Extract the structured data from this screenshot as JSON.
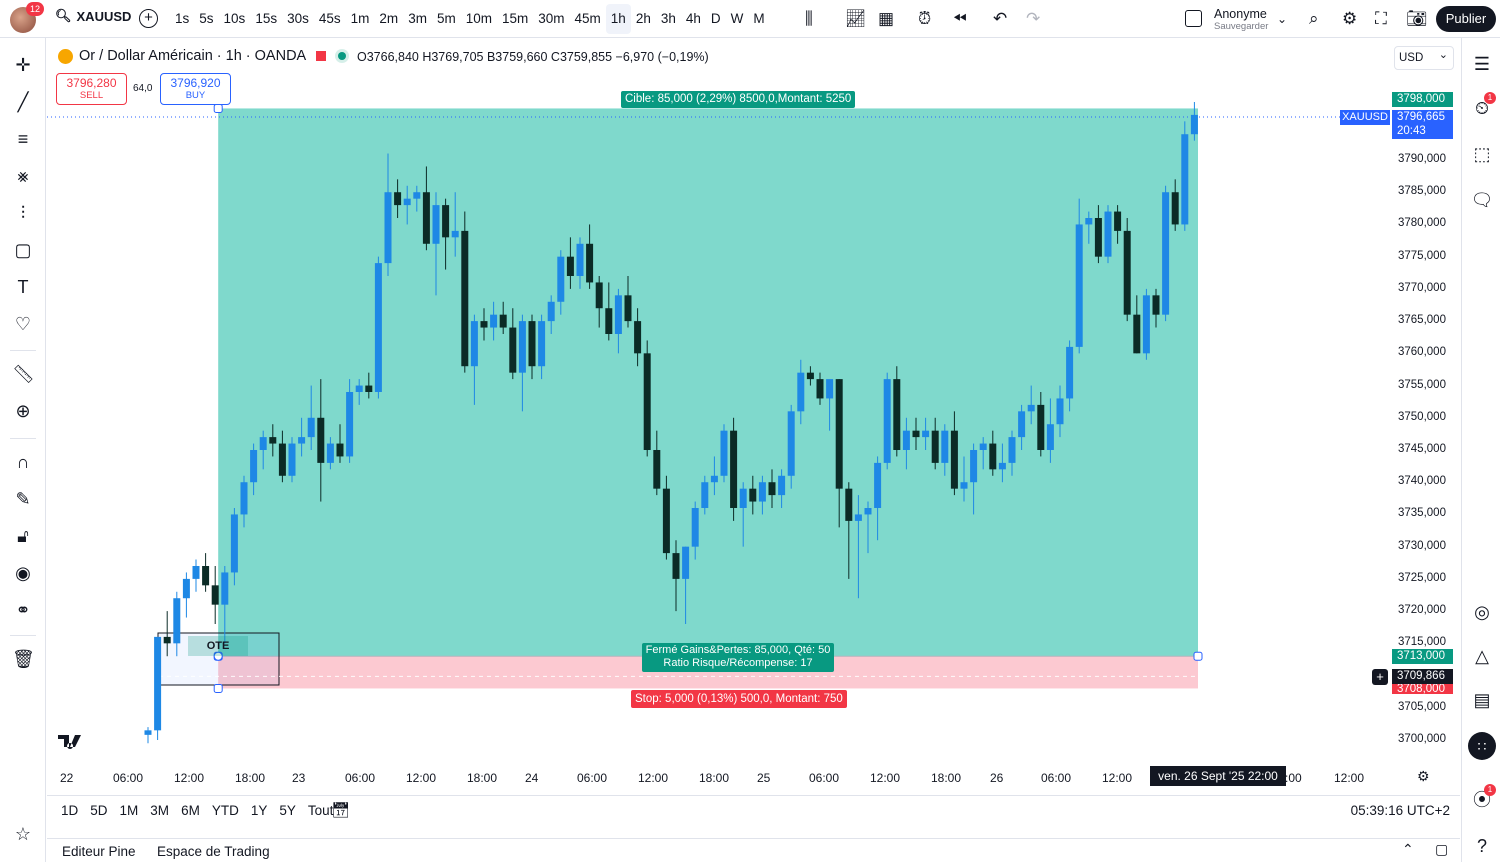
{
  "topbar": {
    "notifications": "12",
    "symbol": "XAUUSD",
    "intervals": [
      "1s",
      "5s",
      "10s",
      "15s",
      "30s",
      "45s",
      "1m",
      "2m",
      "3m",
      "5m",
      "10m",
      "15m",
      "30m",
      "45m",
      "1h",
      "2h",
      "3h",
      "4h",
      "D",
      "W",
      "M"
    ],
    "active_interval": "1h",
    "user_name": "Anonyme",
    "user_status": "Sauvegarder",
    "publish_label": "Publier"
  },
  "legend": {
    "title": "Or / Dollar Américain · 1h · OANDA",
    "ohlc": "O3766,840 H3769,705 B3759,660 C3759,855 −6,970 (−0,19%)"
  },
  "trade": {
    "sell_price": "3796,280",
    "sell_label": "SELL",
    "spread": "64,0",
    "buy_price": "3796,920",
    "buy_label": "BUY",
    "target_text": "Cible: 85,000 (2,29%) 8500,0,Montant: 5250",
    "closed_line1": "Fermé Gains&Pertes: 85,000, Qté: 50",
    "closed_line2": "Ratio Risque/Récompense: 17",
    "stop_text": "Stop: 5,000 (0,13%) 500,0, Montant: 750",
    "ote_label": "OTE"
  },
  "axis": {
    "currency": "USD",
    "price_labels": [
      "3790,000",
      "3785,000",
      "3780,000",
      "3775,000",
      "3770,000",
      "3765,000",
      "3760,000",
      "3755,000",
      "3750,000",
      "3745,000",
      "3740,000",
      "3735,000",
      "3730,000",
      "3725,000",
      "3720,000",
      "3715,000",
      "3705,000",
      "3700,000"
    ],
    "tag_target": "3798,000",
    "tag_symbol": "XAUUSD",
    "tag_last": "3796,665",
    "tag_countdown": "20:43",
    "tag_entry": "3713,000",
    "tag_cross": "3709,866",
    "tag_stop": "3708,000",
    "time_labels": [
      "22",
      "06:00",
      "12:00",
      "18:00",
      "23",
      "06:00",
      "12:00",
      "18:00",
      "24",
      "06:00",
      "12:00",
      "18:00",
      "25",
      "06:00",
      "12:00",
      "18:00",
      "26",
      "06:00",
      "12:00",
      ":00",
      "12:00"
    ],
    "crosshair_time": "ven. 26 Sept '25   22:00"
  },
  "bottom": {
    "ranges": [
      "1D",
      "5D",
      "1M",
      "3M",
      "6M",
      "YTD",
      "1Y",
      "5Y",
      "Tout"
    ],
    "clock": "05:39:16 UTC+2",
    "pine_editor": "Editeur Pine",
    "trading_panel": "Espace de Trading"
  },
  "colors": {
    "up": "#1e88e5",
    "down": "#0b2b26",
    "profit_zone": "#7fd9cc",
    "loss_zone": "#fcc9d1",
    "accent": "#2962ff"
  },
  "chart_data": {
    "type": "candlestick",
    "symbol": "XAUUSD",
    "interval": "1h",
    "ylim": [
      3697,
      3800
    ],
    "candles": [
      {
        "o": 3700.8,
        "h": 3702,
        "l": 3699.5,
        "c": 3701.5
      },
      {
        "o": 3701.5,
        "h": 3716,
        "l": 3700,
        "c": 3716
      },
      {
        "o": 3716,
        "h": 3720,
        "l": 3713,
        "c": 3715
      },
      {
        "o": 3715,
        "h": 3723,
        "l": 3713,
        "c": 3722
      },
      {
        "o": 3722,
        "h": 3726,
        "l": 3719,
        "c": 3725
      },
      {
        "o": 3725,
        "h": 3728,
        "l": 3723,
        "c": 3727
      },
      {
        "o": 3727,
        "h": 3729,
        "l": 3723,
        "c": 3724
      },
      {
        "o": 3724,
        "h": 3727,
        "l": 3718,
        "c": 3721
      },
      {
        "o": 3721,
        "h": 3727,
        "l": 3715,
        "c": 3726
      },
      {
        "o": 3726,
        "h": 3736,
        "l": 3724,
        "c": 3735
      },
      {
        "o": 3735,
        "h": 3741,
        "l": 3733,
        "c": 3740
      },
      {
        "o": 3740,
        "h": 3746,
        "l": 3738,
        "c": 3745
      },
      {
        "o": 3745,
        "h": 3748,
        "l": 3742,
        "c": 3747
      },
      {
        "o": 3747,
        "h": 3749,
        "l": 3744,
        "c": 3746
      },
      {
        "o": 3746,
        "h": 3748,
        "l": 3740,
        "c": 3741
      },
      {
        "o": 3741,
        "h": 3747,
        "l": 3740,
        "c": 3746
      },
      {
        "o": 3746,
        "h": 3750,
        "l": 3744,
        "c": 3747
      },
      {
        "o": 3747,
        "h": 3755,
        "l": 3745,
        "c": 3750
      },
      {
        "o": 3750,
        "h": 3756,
        "l": 3737,
        "c": 3743
      },
      {
        "o": 3743,
        "h": 3747,
        "l": 3742,
        "c": 3746
      },
      {
        "o": 3746,
        "h": 3749,
        "l": 3743,
        "c": 3744
      },
      {
        "o": 3744,
        "h": 3756,
        "l": 3743,
        "c": 3754
      },
      {
        "o": 3754,
        "h": 3756,
        "l": 3752,
        "c": 3755
      },
      {
        "o": 3755,
        "h": 3757,
        "l": 3753,
        "c": 3754
      },
      {
        "o": 3754,
        "h": 3775,
        "l": 3753,
        "c": 3774
      },
      {
        "o": 3774,
        "h": 3791,
        "l": 3772,
        "c": 3785
      },
      {
        "o": 3785,
        "h": 3787,
        "l": 3781,
        "c": 3783
      },
      {
        "o": 3783,
        "h": 3786,
        "l": 3780,
        "c": 3784
      },
      {
        "o": 3784,
        "h": 3786,
        "l": 3782,
        "c": 3785
      },
      {
        "o": 3785,
        "h": 3789,
        "l": 3776,
        "c": 3777
      },
      {
        "o": 3777,
        "h": 3785,
        "l": 3769,
        "c": 3783
      },
      {
        "o": 3783,
        "h": 3784,
        "l": 3773,
        "c": 3778
      },
      {
        "o": 3778,
        "h": 3785,
        "l": 3775,
        "c": 3779
      },
      {
        "o": 3779,
        "h": 3782,
        "l": 3757,
        "c": 3758
      },
      {
        "o": 3758,
        "h": 3766,
        "l": 3752,
        "c": 3765
      },
      {
        "o": 3765,
        "h": 3767,
        "l": 3762,
        "c": 3764
      },
      {
        "o": 3764,
        "h": 3768,
        "l": 3762,
        "c": 3766
      },
      {
        "o": 3766,
        "h": 3768,
        "l": 3763,
        "c": 3764
      },
      {
        "o": 3764,
        "h": 3767,
        "l": 3756,
        "c": 3757
      },
      {
        "o": 3757,
        "h": 3766,
        "l": 3751,
        "c": 3765
      },
      {
        "o": 3765,
        "h": 3766,
        "l": 3756,
        "c": 3758
      },
      {
        "o": 3758,
        "h": 3766,
        "l": 3756,
        "c": 3765
      },
      {
        "o": 3765,
        "h": 3769,
        "l": 3763,
        "c": 3768
      },
      {
        "o": 3768,
        "h": 3776,
        "l": 3766,
        "c": 3775
      },
      {
        "o": 3775,
        "h": 3778,
        "l": 3770,
        "c": 3772
      },
      {
        "o": 3772,
        "h": 3778,
        "l": 3770,
        "c": 3777
      },
      {
        "o": 3777,
        "h": 3780,
        "l": 3770,
        "c": 3771
      },
      {
        "o": 3771,
        "h": 3772,
        "l": 3764,
        "c": 3767
      },
      {
        "o": 3767,
        "h": 3771,
        "l": 3762,
        "c": 3763
      },
      {
        "o": 3763,
        "h": 3770,
        "l": 3760,
        "c": 3769
      },
      {
        "o": 3769,
        "h": 3772,
        "l": 3764,
        "c": 3765
      },
      {
        "o": 3765,
        "h": 3767,
        "l": 3758,
        "c": 3760
      },
      {
        "o": 3760,
        "h": 3762,
        "l": 3744,
        "c": 3745
      },
      {
        "o": 3745,
        "h": 3748,
        "l": 3738,
        "c": 3739
      },
      {
        "o": 3739,
        "h": 3741,
        "l": 3728,
        "c": 3729
      },
      {
        "o": 3729,
        "h": 3731,
        "l": 3720,
        "c": 3725
      },
      {
        "o": 3725,
        "h": 3730,
        "l": 3718,
        "c": 3730
      },
      {
        "o": 3730,
        "h": 3737,
        "l": 3728,
        "c": 3736
      },
      {
        "o": 3736,
        "h": 3741,
        "l": 3735,
        "c": 3740
      },
      {
        "o": 3740,
        "h": 3744,
        "l": 3738,
        "c": 3741
      },
      {
        "o": 3741,
        "h": 3749,
        "l": 3740,
        "c": 3748
      },
      {
        "o": 3748,
        "h": 3750,
        "l": 3734,
        "c": 3736
      },
      {
        "o": 3736,
        "h": 3740,
        "l": 3730,
        "c": 3739
      },
      {
        "o": 3739,
        "h": 3741,
        "l": 3735,
        "c": 3737
      },
      {
        "o": 3737,
        "h": 3741,
        "l": 3735,
        "c": 3740
      },
      {
        "o": 3740,
        "h": 3742,
        "l": 3736,
        "c": 3738
      },
      {
        "o": 3738,
        "h": 3742,
        "l": 3736,
        "c": 3741
      },
      {
        "o": 3741,
        "h": 3752,
        "l": 3739,
        "c": 3751
      },
      {
        "o": 3751,
        "h": 3759,
        "l": 3749,
        "c": 3757
      },
      {
        "o": 3757,
        "h": 3758,
        "l": 3755,
        "c": 3756
      },
      {
        "o": 3756,
        "h": 3757,
        "l": 3752,
        "c": 3753
      },
      {
        "o": 3753,
        "h": 3755,
        "l": 3748,
        "c": 3756
      },
      {
        "o": 3756,
        "h": 3756,
        "l": 3733,
        "c": 3739
      },
      {
        "o": 3739,
        "h": 3740,
        "l": 3725,
        "c": 3734
      },
      {
        "o": 3734,
        "h": 3738,
        "l": 3722,
        "c": 3735
      },
      {
        "o": 3735,
        "h": 3737,
        "l": 3729,
        "c": 3736
      },
      {
        "o": 3736,
        "h": 3744,
        "l": 3731,
        "c": 3743
      },
      {
        "o": 3743,
        "h": 3757,
        "l": 3742,
        "c": 3756
      },
      {
        "o": 3756,
        "h": 3758,
        "l": 3744,
        "c": 3745
      },
      {
        "o": 3745,
        "h": 3750,
        "l": 3742,
        "c": 3748
      },
      {
        "o": 3748,
        "h": 3750,
        "l": 3745,
        "c": 3747
      },
      {
        "o": 3747,
        "h": 3750,
        "l": 3745,
        "c": 3748
      },
      {
        "o": 3748,
        "h": 3750,
        "l": 3742,
        "c": 3743
      },
      {
        "o": 3743,
        "h": 3749,
        "l": 3741,
        "c": 3748
      },
      {
        "o": 3748,
        "h": 3751,
        "l": 3738,
        "c": 3739
      },
      {
        "o": 3739,
        "h": 3744,
        "l": 3737,
        "c": 3740
      },
      {
        "o": 3740,
        "h": 3746,
        "l": 3735,
        "c": 3745
      },
      {
        "o": 3745,
        "h": 3747,
        "l": 3742,
        "c": 3746
      },
      {
        "o": 3746,
        "h": 3748,
        "l": 3741,
        "c": 3742
      },
      {
        "o": 3742,
        "h": 3746,
        "l": 3740,
        "c": 3743
      },
      {
        "o": 3743,
        "h": 3748,
        "l": 3741,
        "c": 3747
      },
      {
        "o": 3747,
        "h": 3752,
        "l": 3745,
        "c": 3751
      },
      {
        "o": 3751,
        "h": 3755,
        "l": 3749,
        "c": 3752
      },
      {
        "o": 3752,
        "h": 3754,
        "l": 3744,
        "c": 3745
      },
      {
        "o": 3745,
        "h": 3753,
        "l": 3743,
        "c": 3749
      },
      {
        "o": 3749,
        "h": 3755,
        "l": 3747,
        "c": 3753
      },
      {
        "o": 3753,
        "h": 3762,
        "l": 3751,
        "c": 3761
      },
      {
        "o": 3761,
        "h": 3784,
        "l": 3760,
        "c": 3780
      },
      {
        "o": 3780,
        "h": 3782,
        "l": 3777,
        "c": 3781
      },
      {
        "o": 3781,
        "h": 3783,
        "l": 3774,
        "c": 3775
      },
      {
        "o": 3775,
        "h": 3783,
        "l": 3774,
        "c": 3782
      },
      {
        "o": 3782,
        "h": 3783,
        "l": 3777,
        "c": 3779
      },
      {
        "o": 3779,
        "h": 3781,
        "l": 3765,
        "c": 3766
      },
      {
        "o": 3766,
        "h": 3769,
        "l": 3760,
        "c": 3760
      },
      {
        "o": 3760,
        "h": 3770,
        "l": 3759,
        "c": 3769
      },
      {
        "o": 3769,
        "h": 3770,
        "l": 3764,
        "c": 3766
      },
      {
        "o": 3766,
        "h": 3786,
        "l": 3765,
        "c": 3785
      },
      {
        "o": 3785,
        "h": 3787,
        "l": 3779,
        "c": 3780
      },
      {
        "o": 3780,
        "h": 3796,
        "l": 3779,
        "c": 3794
      },
      {
        "o": 3794,
        "h": 3799,
        "l": 3793,
        "c": 3797
      }
    ],
    "position": {
      "target": 3798,
      "entry": 3713,
      "stop": 3708,
      "start_index": 7,
      "end_index": 110
    }
  }
}
